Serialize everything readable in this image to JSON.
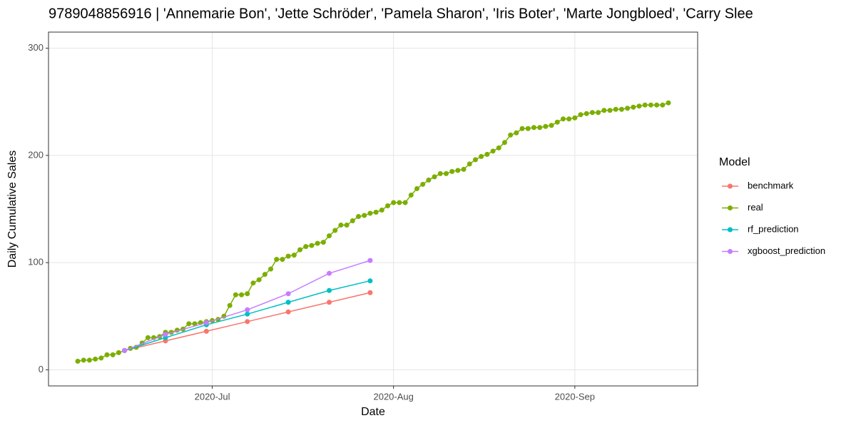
{
  "chart_data": {
    "type": "line",
    "title": "9789048856916 | 'Annemarie Bon', 'Jette Schröder', 'Pamela Sharon', 'Iris Boter', 'Marte Jongbloed', 'Carry Slee",
    "x_label": "Date",
    "y_label": "Daily Cumulative Sales",
    "legend_title": "Model",
    "legend_position": "right",
    "grid": true,
    "xlim": [
      155,
      266
    ],
    "xticks": [
      {
        "value": 183,
        "label": "2020-Jul"
      },
      {
        "value": 214,
        "label": "2020-Aug"
      },
      {
        "value": 245,
        "label": "2020-Sep"
      }
    ],
    "ylim": [
      -15,
      315
    ],
    "yticks": [
      0,
      100,
      200,
      300
    ],
    "series": [
      {
        "name": "benchmark",
        "color": "#F8766D",
        "x": [
          168,
          175,
          182,
          189,
          196,
          203,
          210
        ],
        "values": [
          18,
          27,
          36,
          45,
          54,
          63,
          72
        ]
      },
      {
        "name": "real",
        "color": "#7CAE00",
        "x": [
          160,
          161,
          162,
          163,
          164,
          165,
          166,
          167,
          168,
          169,
          170,
          171,
          172,
          173,
          174,
          175,
          176,
          177,
          178,
          179,
          180,
          181,
          182,
          183,
          184,
          185,
          186,
          187,
          188,
          189,
          190,
          191,
          192,
          193,
          194,
          195,
          196,
          197,
          198,
          199,
          200,
          201,
          202,
          203,
          204,
          205,
          206,
          207,
          208,
          209,
          210,
          211,
          212,
          213,
          214,
          215,
          216,
          217,
          218,
          219,
          220,
          221,
          222,
          223,
          224,
          225,
          226,
          227,
          228,
          229,
          230,
          231,
          232,
          233,
          234,
          235,
          236,
          237,
          238,
          239,
          240,
          241,
          242,
          243,
          244,
          245,
          246,
          247,
          248,
          249,
          250,
          251,
          252,
          253,
          254,
          255,
          256,
          257,
          258,
          259,
          260,
          261
        ],
        "values": [
          8,
          9,
          9,
          10,
          11,
          14,
          14,
          16,
          18,
          20,
          21,
          25,
          30,
          30,
          31,
          35,
          35,
          37,
          38,
          43,
          43,
          44,
          45,
          46,
          47,
          50,
          60,
          70,
          70,
          71,
          81,
          84,
          89,
          94,
          103,
          103,
          106,
          107,
          112,
          115,
          116,
          118,
          119,
          125,
          130,
          135,
          135,
          139,
          143,
          144,
          146,
          147,
          149,
          153,
          156,
          156,
          156,
          163,
          169,
          173,
          177,
          180,
          183,
          183,
          185,
          186,
          187,
          192,
          196,
          199,
          201,
          204,
          207,
          212,
          219,
          221,
          225,
          225,
          226,
          226,
          227,
          228,
          231,
          234,
          234,
          235,
          238,
          239,
          240,
          240,
          242,
          242,
          243,
          243,
          244,
          245,
          246,
          247,
          247,
          247,
          247,
          249
        ]
      },
      {
        "name": "rf_prediction",
        "color": "#00BFC4",
        "x": [
          168,
          175,
          182,
          189,
          196,
          203,
          210
        ],
        "values": [
          18,
          30,
          42,
          52,
          63,
          74,
          83
        ]
      },
      {
        "name": "xgboost_prediction",
        "color": "#C77CFF",
        "x": [
          168,
          175,
          182,
          189,
          196,
          203,
          210
        ],
        "values": [
          18,
          33,
          44,
          56,
          71,
          90,
          102
        ]
      }
    ]
  }
}
